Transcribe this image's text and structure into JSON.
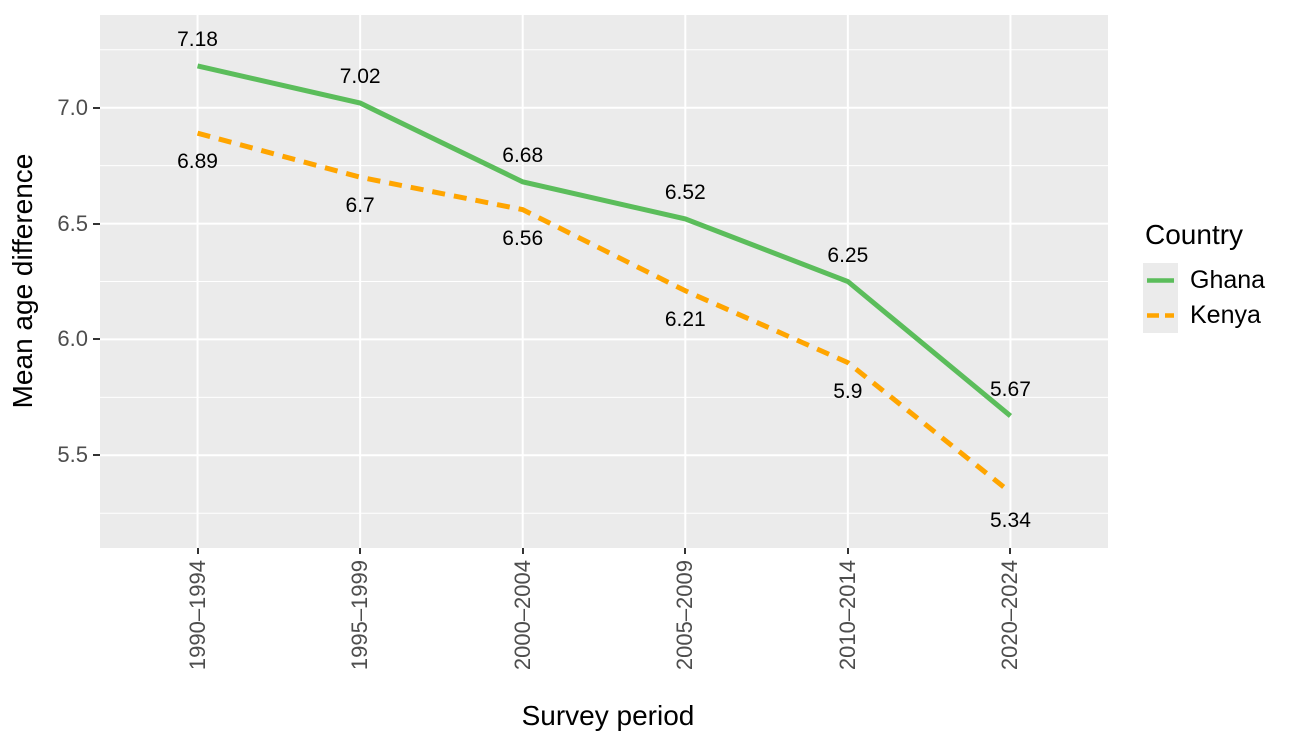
{
  "chart_data": {
    "type": "line",
    "xlabel": "Survey period",
    "ylabel": "Mean age difference",
    "categories": [
      "1990–1994",
      "1995–1999",
      "2000–2004",
      "2005–2009",
      "2010–2014",
      "2020–2024"
    ],
    "series": [
      {
        "name": "Ghana",
        "color": "#5bbd5b",
        "linetype": "solid",
        "values": [
          7.18,
          7.02,
          6.68,
          6.52,
          6.25,
          5.67
        ],
        "labels": [
          "7.18",
          "7.02",
          "6.68",
          "6.52",
          "6.25",
          "5.67"
        ],
        "label_side": "above"
      },
      {
        "name": "Kenya",
        "color": "#ffa500",
        "linetype": "dashed",
        "values": [
          6.89,
          6.7,
          6.56,
          6.21,
          5.9,
          5.34
        ],
        "labels": [
          "6.89",
          "6.7",
          "6.56",
          "6.21",
          "5.9",
          "5.34"
        ],
        "label_side": "below"
      }
    ],
    "ylim": [
      5.1,
      7.4
    ],
    "yticks": {
      "values": [
        5.5,
        6.0,
        6.5,
        7.0
      ],
      "labels": [
        "5.5",
        "6.0",
        "6.5",
        "7.0"
      ]
    },
    "yminor": [
      5.25,
      5.75,
      6.25,
      6.75,
      7.25
    ],
    "legend": {
      "title": "Country",
      "position": "right"
    },
    "style": {
      "panel_bg": "#ebebeb",
      "grid_color": "#ffffff",
      "tick_color": "#333333",
      "tick_label_color": "#4d4d4d",
      "label_color": "#000000"
    }
  }
}
